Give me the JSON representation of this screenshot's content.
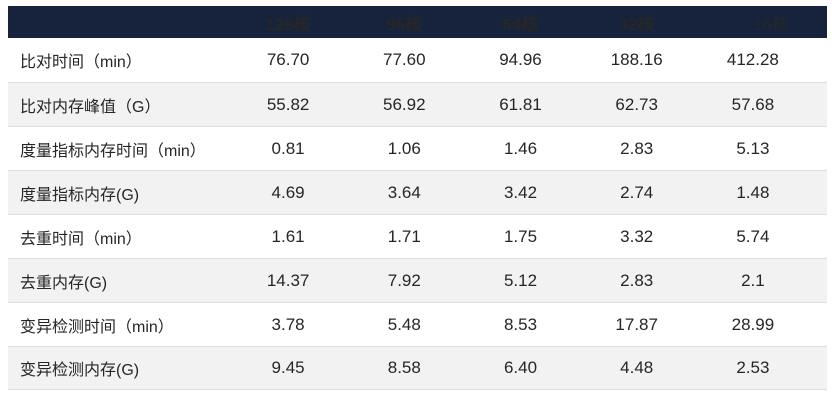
{
  "colors": {
    "header_bg": "#17233C",
    "header_text": "#FFFFFF",
    "body_text": "#262626",
    "stripe": "#F2F2F2",
    "divider": "#E0E0E0"
  },
  "table": {
    "columns": [
      {
        "label": "",
        "bold": false
      },
      {
        "label": "128核",
        "bold": true
      },
      {
        "label": "96核",
        "bold": true
      },
      {
        "label": "64核",
        "bold": true
      },
      {
        "label": "32核",
        "bold": true
      },
      {
        "label": "16核",
        "bold": false
      }
    ],
    "rows": [
      {
        "label": "比对时间（min）",
        "values": [
          "76.70",
          "77.60",
          "94.96",
          "188.16",
          "412.28"
        ]
      },
      {
        "label": "比对内存峰值（G）",
        "values": [
          "55.82",
          "56.92",
          "61.81",
          "62.73",
          "57.68"
        ]
      },
      {
        "label": "度量指标内存时间（min）",
        "values": [
          "0.81",
          "1.06",
          "1.46",
          "2.83",
          "5.13"
        ]
      },
      {
        "label": "度量指标内存(G)",
        "values": [
          "4.69",
          "3.64",
          "3.42",
          "2.74",
          "1.48"
        ]
      },
      {
        "label": "去重时间（min）",
        "values": [
          "1.61",
          "1.71",
          "1.75",
          "3.32",
          "5.74"
        ]
      },
      {
        "label": "去重内存(G)",
        "values": [
          "14.37",
          "7.92",
          "5.12",
          "2.83",
          "2.1"
        ]
      },
      {
        "label": "变异检测时间（min）",
        "values": [
          "3.78",
          "5.48",
          "8.53",
          "17.87",
          "28.99"
        ]
      },
      {
        "label": "变异检测内存(G)",
        "values": [
          "9.45",
          "8.58",
          "6.40",
          "4.48",
          "2.53"
        ]
      }
    ]
  },
  "chart_data": {
    "type": "table",
    "title": "",
    "columns": [
      "",
      "128核",
      "96核",
      "64核",
      "32核",
      "16核"
    ],
    "rows": [
      {
        "metric": "比对时间（min）",
        "values": [
          76.7,
          77.6,
          94.96,
          188.16,
          412.28
        ]
      },
      {
        "metric": "比对内存峰值（G）",
        "values": [
          55.82,
          56.92,
          61.81,
          62.73,
          57.68
        ]
      },
      {
        "metric": "度量指标内存时间（min）",
        "values": [
          0.81,
          1.06,
          1.46,
          2.83,
          5.13
        ]
      },
      {
        "metric": "度量指标内存(G)",
        "values": [
          4.69,
          3.64,
          3.42,
          2.74,
          1.48
        ]
      },
      {
        "metric": "去重时间（min）",
        "values": [
          1.61,
          1.71,
          1.75,
          3.32,
          5.74
        ]
      },
      {
        "metric": "去重内存(G)",
        "values": [
          14.37,
          7.92,
          5.12,
          2.83,
          2.1
        ]
      },
      {
        "metric": "变异检测时间（min）",
        "values": [
          3.78,
          5.48,
          8.53,
          17.87,
          28.99
        ]
      },
      {
        "metric": "变异检测内存(G)",
        "values": [
          9.45,
          8.58,
          6.4,
          4.48,
          2.53
        ]
      }
    ]
  }
}
